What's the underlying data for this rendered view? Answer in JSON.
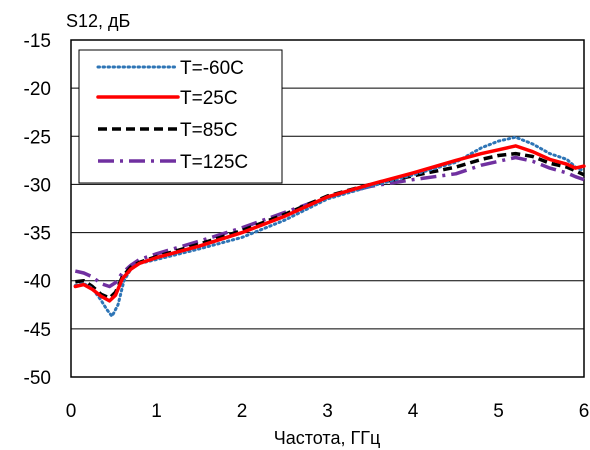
{
  "chart_data": {
    "type": "line",
    "ylabel": "S12, дБ",
    "xlabel": "Частота, ГГц",
    "xlim": [
      0,
      6
    ],
    "ylim": [
      -50,
      -15
    ],
    "xticks": [
      0,
      1,
      2,
      3,
      4,
      5,
      6
    ],
    "yticks": [
      -15,
      -20,
      -25,
      -30,
      -35,
      -40,
      -45,
      -50
    ],
    "grid": "horizontal",
    "legend_position": "top-left",
    "series": [
      {
        "name": "T=-60C",
        "color": "#2e75b6",
        "dash": "dotted",
        "points": [
          [
            0.05,
            -40.5
          ],
          [
            0.15,
            -40.3
          ],
          [
            0.25,
            -40.8
          ],
          [
            0.35,
            -42.0
          ],
          [
            0.42,
            -43.0
          ],
          [
            0.48,
            -43.7
          ],
          [
            0.55,
            -42.5
          ],
          [
            0.62,
            -40.0
          ],
          [
            0.7,
            -38.8
          ],
          [
            0.8,
            -38.2
          ],
          [
            1.0,
            -37.8
          ],
          [
            1.5,
            -36.7
          ],
          [
            2.0,
            -35.5
          ],
          [
            2.5,
            -33.7
          ],
          [
            3.0,
            -31.5
          ],
          [
            3.5,
            -30.2
          ],
          [
            4.0,
            -29.0
          ],
          [
            4.5,
            -27.7
          ],
          [
            4.8,
            -26.2
          ],
          [
            5.0,
            -25.5
          ],
          [
            5.2,
            -25.1
          ],
          [
            5.4,
            -25.8
          ],
          [
            5.6,
            -26.8
          ],
          [
            5.8,
            -27.4
          ],
          [
            5.9,
            -28.2
          ],
          [
            6.0,
            -28.6
          ]
        ]
      },
      {
        "name": "T=25C",
        "color": "#ff0000",
        "dash": "solid",
        "points": [
          [
            0.05,
            -40.6
          ],
          [
            0.15,
            -40.4
          ],
          [
            0.25,
            -40.9
          ],
          [
            0.35,
            -41.6
          ],
          [
            0.45,
            -42.1
          ],
          [
            0.52,
            -41.5
          ],
          [
            0.6,
            -39.8
          ],
          [
            0.7,
            -38.8
          ],
          [
            0.8,
            -38.2
          ],
          [
            1.0,
            -37.6
          ],
          [
            1.5,
            -36.4
          ],
          [
            2.0,
            -35.0
          ],
          [
            2.5,
            -33.3
          ],
          [
            3.0,
            -31.3
          ],
          [
            3.5,
            -30.0
          ],
          [
            4.0,
            -28.8
          ],
          [
            4.5,
            -27.5
          ],
          [
            4.8,
            -26.8
          ],
          [
            5.0,
            -26.4
          ],
          [
            5.2,
            -26.0
          ],
          [
            5.4,
            -26.6
          ],
          [
            5.6,
            -27.4
          ],
          [
            5.8,
            -27.9
          ],
          [
            5.9,
            -28.3
          ],
          [
            6.0,
            -28.1
          ]
        ]
      },
      {
        "name": "T=85C",
        "color": "#000000",
        "dash": "dashed",
        "points": [
          [
            0.05,
            -40.1
          ],
          [
            0.15,
            -40.0
          ],
          [
            0.25,
            -40.6
          ],
          [
            0.35,
            -41.4
          ],
          [
            0.45,
            -41.8
          ],
          [
            0.52,
            -41.2
          ],
          [
            0.6,
            -39.6
          ],
          [
            0.7,
            -38.6
          ],
          [
            0.8,
            -38.1
          ],
          [
            1.0,
            -37.5
          ],
          [
            1.5,
            -36.2
          ],
          [
            2.0,
            -34.8
          ],
          [
            2.5,
            -33.1
          ],
          [
            3.0,
            -31.2
          ],
          [
            3.5,
            -30.0
          ],
          [
            4.0,
            -29.1
          ],
          [
            4.5,
            -28.2
          ],
          [
            4.8,
            -27.4
          ],
          [
            5.0,
            -27.0
          ],
          [
            5.2,
            -26.8
          ],
          [
            5.4,
            -27.1
          ],
          [
            5.6,
            -27.8
          ],
          [
            5.8,
            -28.2
          ],
          [
            5.9,
            -28.6
          ],
          [
            6.0,
            -29.0
          ]
        ]
      },
      {
        "name": "T=125C",
        "color": "#7030a0",
        "dash": "dashdot",
        "points": [
          [
            0.05,
            -39.0
          ],
          [
            0.15,
            -39.2
          ],
          [
            0.25,
            -39.6
          ],
          [
            0.35,
            -40.3
          ],
          [
            0.45,
            -40.6
          ],
          [
            0.52,
            -40.2
          ],
          [
            0.6,
            -39.2
          ],
          [
            0.7,
            -38.4
          ],
          [
            0.8,
            -37.8
          ],
          [
            1.0,
            -37.2
          ],
          [
            1.5,
            -35.9
          ],
          [
            2.0,
            -34.5
          ],
          [
            2.5,
            -32.9
          ],
          [
            3.0,
            -31.3
          ],
          [
            3.5,
            -30.2
          ],
          [
            4.0,
            -29.5
          ],
          [
            4.5,
            -28.9
          ],
          [
            4.8,
            -28.0
          ],
          [
            5.0,
            -27.6
          ],
          [
            5.2,
            -27.2
          ],
          [
            5.4,
            -27.6
          ],
          [
            5.6,
            -28.3
          ],
          [
            5.8,
            -28.8
          ],
          [
            5.9,
            -29.2
          ],
          [
            6.0,
            -29.5
          ]
        ]
      }
    ]
  }
}
